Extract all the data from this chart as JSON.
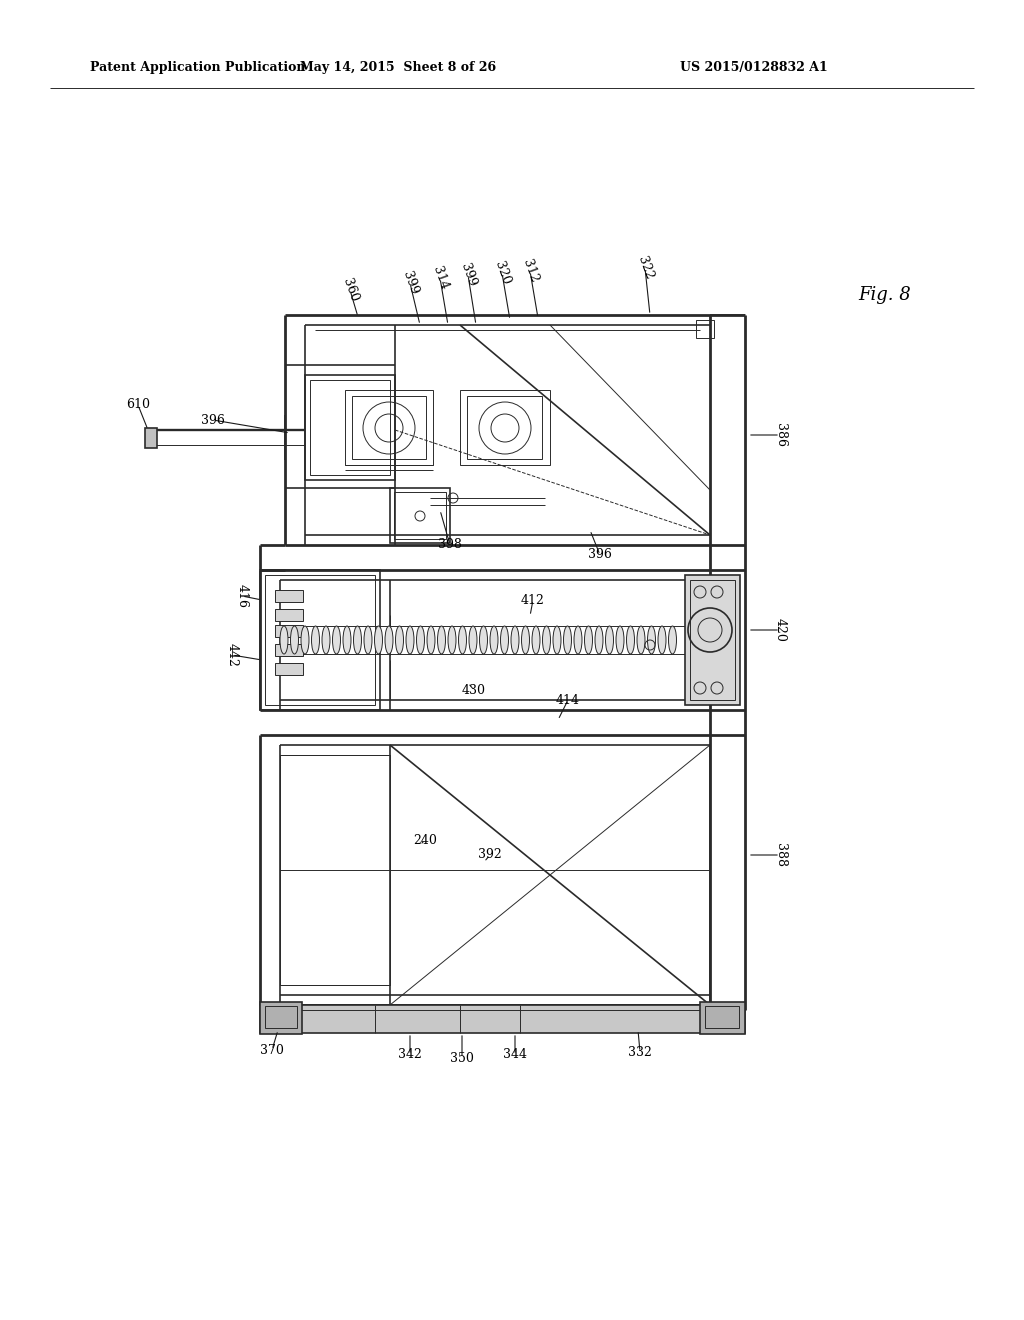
{
  "bg_color": "#ffffff",
  "header_text": "Patent Application Publication",
  "header_date": "May 14, 2015  Sheet 8 of 26",
  "header_patent": "US 2015/0128832 A1",
  "line_color": "#2a2a2a",
  "lw_thick": 2.0,
  "lw_main": 1.2,
  "lw_thin": 0.7,
  "lw_ultra": 0.5
}
